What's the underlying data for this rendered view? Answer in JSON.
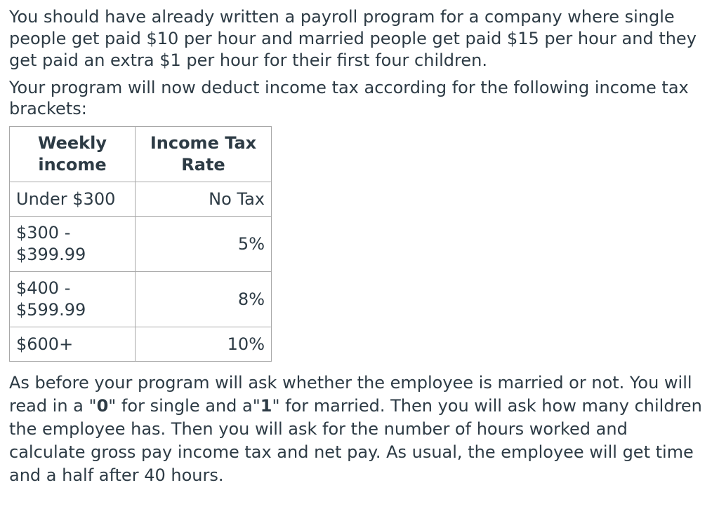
{
  "paragraphs": {
    "intro_1": "You should have already written a payroll program for a company where single people get paid $10 per hour and married people get paid $15 per hour and they get paid an extra $1 per hour for their first four children.",
    "intro_2": "Your program will now deduct income tax according for the following income tax brackets:"
  },
  "tax_table": {
    "headers": [
      "Weekly income",
      "Income Tax Rate"
    ],
    "rows": [
      {
        "income": "Under $300",
        "rate": "No Tax"
      },
      {
        "income": "$300 - $399.99",
        "rate": "5%"
      },
      {
        "income": "$400 - $599.99",
        "rate": "8%"
      },
      {
        "income": "$600+",
        "rate": "10%"
      }
    ]
  },
  "outro": {
    "part_1": "As before your program will ask whether the employee is married or not. You will read in a \"",
    "bold_zero": "0",
    "part_2": "\" for single and a\"",
    "bold_one": "1",
    "part_3": "\" for married. Then you will ask how many children the employee has. Then you will ask for the number of hours worked and calculate gross pay income tax and net pay. As usual, the employee will get time and a half after 40 hours."
  }
}
